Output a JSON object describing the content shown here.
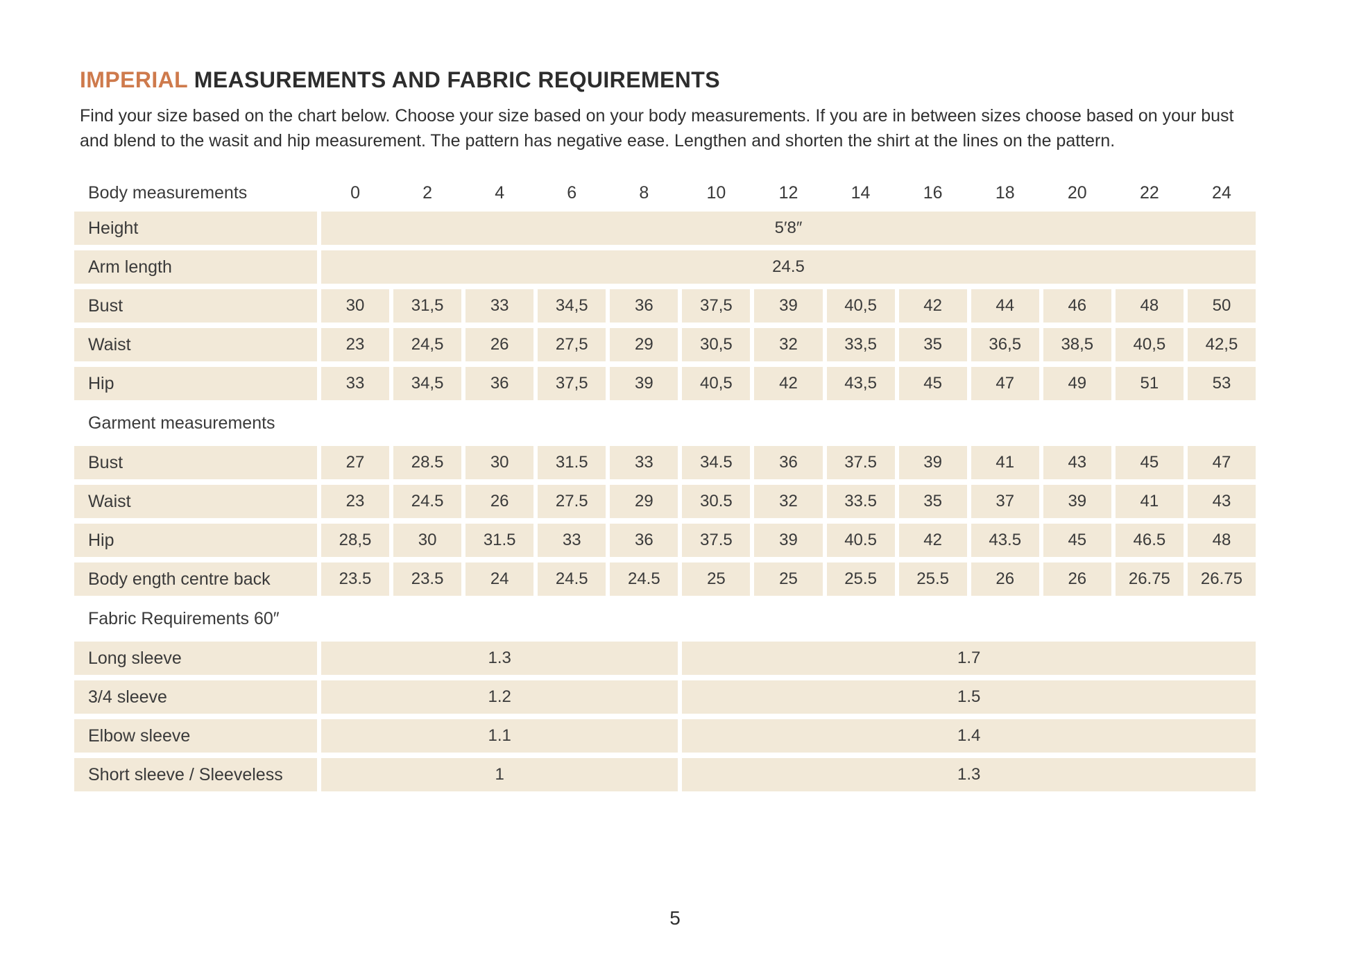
{
  "page": {
    "title_highlight": "IMPERIAL",
    "title_rest": " MEASUREMENTS AND FABRIC REQUIREMENTS",
    "intro": "Find your size based on the chart below. Choose your size based on your body measurements. If you are in between sizes choose based on your bust and blend to the wasit and hip measurement. The pattern has negative ease. Lengthen and shorten the shirt at the lines on the pattern.",
    "page_number": "5"
  },
  "colors": {
    "accent": "#ce7a4c",
    "cell_background": "#f2e9d8",
    "text": "#3a3a3a"
  },
  "table": {
    "header_label": "Body measurements",
    "sizes": [
      "0",
      "2",
      "4",
      "6",
      "8",
      "10",
      "12",
      "14",
      "16",
      "18",
      "20",
      "22",
      "24"
    ],
    "rows": [
      {
        "type": "full",
        "label": "Height",
        "value": "5′8″"
      },
      {
        "type": "full",
        "label": "Arm length",
        "value": "24.5"
      },
      {
        "type": "cells",
        "label": "Bust",
        "values": [
          "30",
          "31,5",
          "33",
          "34,5",
          "36",
          "37,5",
          "39",
          "40,5",
          "42",
          "44",
          "46",
          "48",
          "50"
        ]
      },
      {
        "type": "cells",
        "label": "Waist",
        "values": [
          "23",
          "24,5",
          "26",
          "27,5",
          "29",
          "30,5",
          "32",
          "33,5",
          "35",
          "36,5",
          "38,5",
          "40,5",
          "42,5"
        ]
      },
      {
        "type": "cells",
        "label": "Hip",
        "values": [
          "33",
          "34,5",
          "36",
          "37,5",
          "39",
          "40,5",
          "42",
          "43,5",
          "45",
          "47",
          "49",
          "51",
          "53"
        ]
      },
      {
        "type": "section",
        "label": "Garment measurements"
      },
      {
        "type": "cells",
        "label": "Bust",
        "values": [
          "27",
          "28.5",
          "30",
          "31.5",
          "33",
          "34.5",
          "36",
          "37.5",
          "39",
          "41",
          "43",
          "45",
          "47"
        ]
      },
      {
        "type": "cells",
        "label": "Waist",
        "values": [
          "23",
          "24.5",
          "26",
          "27.5",
          "29",
          "30.5",
          "32",
          "33.5",
          "35",
          "37",
          "39",
          "41",
          "43"
        ]
      },
      {
        "type": "cells",
        "label": "Hip",
        "values": [
          "28,5",
          "30",
          "31.5",
          "33",
          "36",
          "37.5",
          "39",
          "40.5",
          "42",
          "43.5",
          "45",
          "46.5",
          "48"
        ]
      },
      {
        "type": "cells",
        "label": "Body ength centre back",
        "values": [
          "23.5",
          "23.5",
          "24",
          "24.5",
          "24.5",
          "25",
          "25",
          "25.5",
          "25.5",
          "26",
          "26",
          "26.75",
          "26.75"
        ]
      },
      {
        "type": "section",
        "label": "Fabric Requirements 60″"
      },
      {
        "type": "split",
        "label": "Long sleeve",
        "left": "1.3",
        "right": "1.7"
      },
      {
        "type": "split",
        "label": "3/4 sleeve",
        "left": "1.2",
        "right": "1.5"
      },
      {
        "type": "split",
        "label": "Elbow sleeve",
        "left": "1.1",
        "right": "1.4"
      },
      {
        "type": "split",
        "label": "Short sleeve / Sleeveless",
        "left": "1",
        "right": "1.3"
      }
    ]
  }
}
